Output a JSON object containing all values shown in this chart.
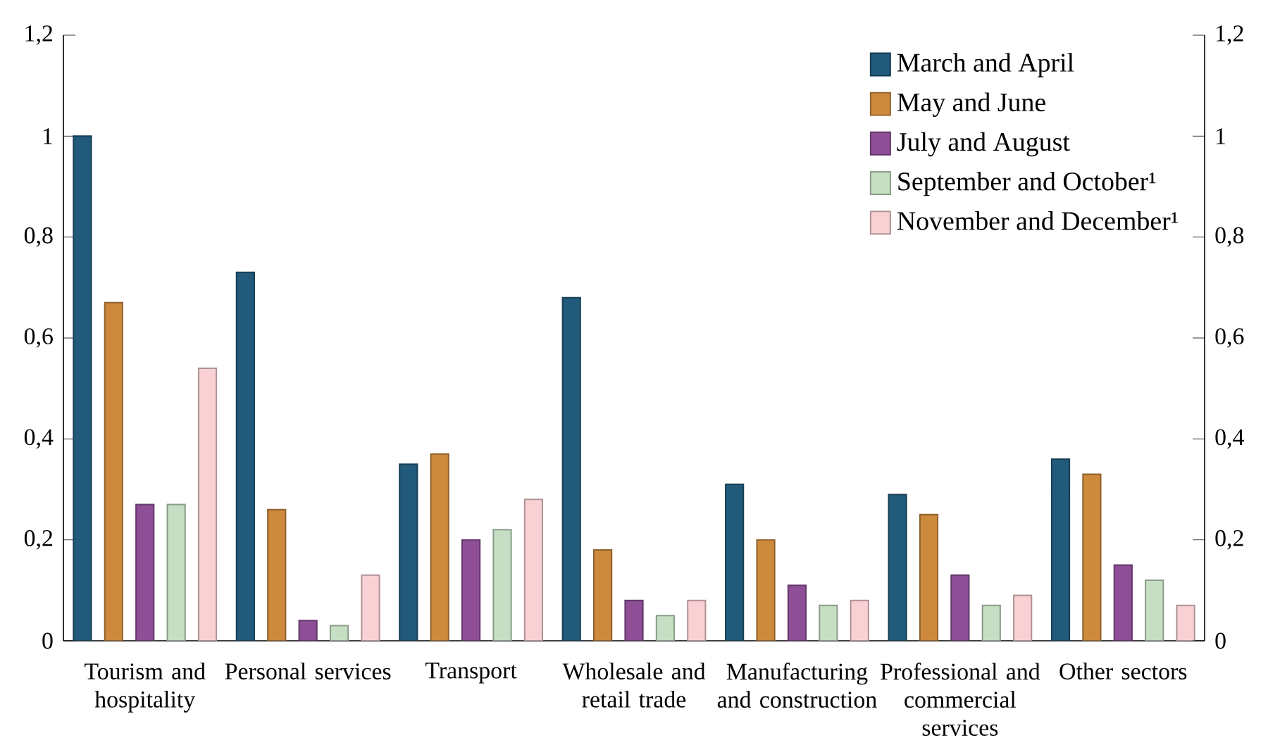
{
  "chart_data": {
    "type": "bar",
    "categories": [
      "Tourism and hospitality",
      "Personal services",
      "Transport",
      "Wholesale and retail trade",
      "Manufacturing and construction",
      "Professional and commercial services",
      "Other sectors"
    ],
    "series": [
      {
        "name": "March and April",
        "color": "#215a7a",
        "values": [
          1.0,
          0.73,
          0.35,
          0.68,
          0.31,
          0.29,
          0.36
        ]
      },
      {
        "name": "May and June",
        "color": "#cd8a3d",
        "values": [
          0.67,
          0.26,
          0.37,
          0.18,
          0.2,
          0.25,
          0.33
        ]
      },
      {
        "name": "July and August",
        "color": "#8e4f97",
        "values": [
          0.27,
          0.04,
          0.2,
          0.08,
          0.11,
          0.13,
          0.15
        ]
      },
      {
        "name": "September and October¹",
        "color": "#c6dfc4",
        "values": [
          0.27,
          0.03,
          0.22,
          0.05,
          0.07,
          0.07,
          0.12
        ]
      },
      {
        "name": "November and December¹",
        "color": "#f9d1d4",
        "values": [
          0.54,
          0.13,
          0.28,
          0.08,
          0.08,
          0.09,
          0.07
        ]
      }
    ],
    "ylim": [
      0,
      1.2
    ],
    "yticks": [
      0,
      {
        "value": 0.2,
        "label": "0,2"
      },
      {
        "value": 0.4,
        "label": "0,4"
      },
      {
        "value": 0.6,
        "label": "0,6"
      },
      {
        "value": 0.8,
        "label": "0,8"
      },
      1,
      {
        "value": 1.2,
        "label": "1,2"
      }
    ],
    "y2lim": [
      0,
      1.2
    ],
    "y2ticks": [
      0,
      {
        "value": 0.2,
        "label": "0,2"
      },
      {
        "value": 0.4,
        "label": "0,4"
      },
      {
        "value": 0.6,
        "label": "0,6"
      },
      {
        "value": 0.8,
        "label": "0,8"
      },
      1,
      {
        "value": 1.2,
        "label": "1,2"
      }
    ],
    "grid": false,
    "legend": "top right"
  }
}
